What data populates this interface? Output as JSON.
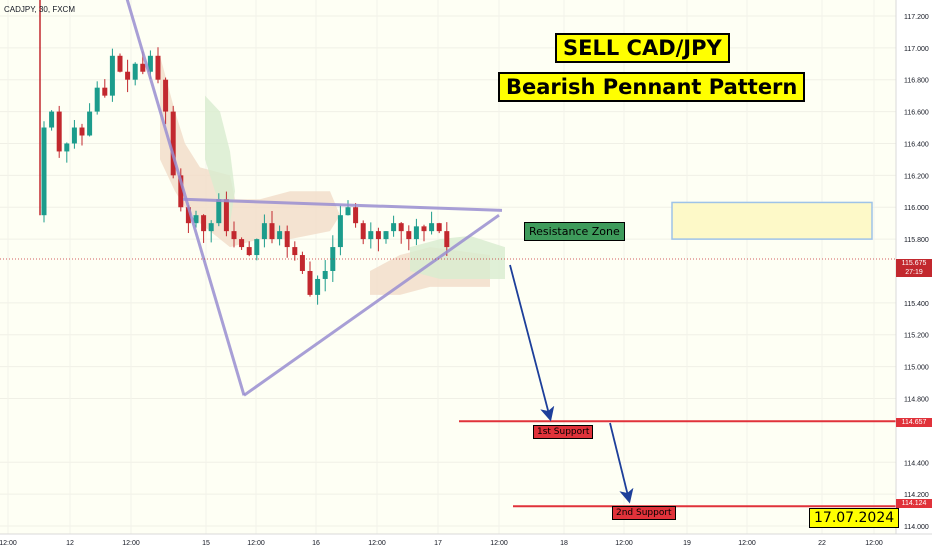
{
  "symbol_label": "CADJPY, 30, FXCM",
  "annotations": {
    "title_line1": "SELL CAD/JPY",
    "title_line2": "Bearish Pennant Pattern",
    "resistance_zone": "Resistance Zone",
    "support1": "1st Support",
    "support2": "2nd Support",
    "date": "17.07.2024"
  },
  "price_badges": {
    "current_price": "115.675",
    "countdown": "27:19",
    "support1_price": "114.657",
    "support2_price": "114.124"
  },
  "colors": {
    "background": "#fefff4",
    "bull_candle": "#1c9c8c",
    "bear_candle": "#c2282e",
    "support_line": "#e0323a",
    "pennant_line": "#9a8fd1",
    "arrow": "#1d3f9a",
    "ichimoku_bull_cloud": "#d8ecd0",
    "ichimoku_bear_cloud": "#f1dcc8"
  },
  "chart_data": {
    "type": "candlestick",
    "symbol": "CADJPY",
    "timeframe": "30",
    "source": "FXCM",
    "y_ticks": [
      "117.200",
      "117.000",
      "116.800",
      "116.600",
      "116.400",
      "116.200",
      "116.000",
      "115.800",
      "115.400",
      "115.200",
      "115.000",
      "114.800",
      "114.400",
      "114.200",
      "114.000"
    ],
    "x_ticks": [
      "12:00",
      "12",
      "12:00",
      "15",
      "12:00",
      "16",
      "12:00",
      "17",
      "12:00",
      "18",
      "12:00",
      "19",
      "12:00",
      "22",
      "12:00"
    ],
    "ylim": [
      113.95,
      117.3
    ],
    "current_price": 115.675,
    "support_levels": [
      114.657,
      114.124
    ],
    "price_path": [
      [
        0,
        115.95
      ],
      [
        1,
        116.5
      ],
      [
        2,
        116.6
      ],
      [
        3,
        116.35
      ],
      [
        4,
        116.4
      ],
      [
        5,
        116.5
      ],
      [
        6,
        116.45
      ],
      [
        7,
        116.6
      ],
      [
        8,
        116.75
      ],
      [
        9,
        116.7
      ],
      [
        10,
        116.95
      ],
      [
        11,
        116.85
      ],
      [
        12,
        116.8
      ],
      [
        13,
        116.9
      ],
      [
        14,
        116.85
      ],
      [
        15,
        116.95
      ],
      [
        16,
        116.8
      ],
      [
        17,
        116.6
      ],
      [
        18,
        116.2
      ],
      [
        19,
        116.0
      ],
      [
        20,
        115.9
      ],
      [
        21,
        115.95
      ],
      [
        22,
        115.85
      ],
      [
        23,
        115.9
      ],
      [
        24,
        116.05
      ],
      [
        25,
        115.85
      ],
      [
        26,
        115.8
      ],
      [
        27,
        115.75
      ],
      [
        28,
        115.7
      ],
      [
        29,
        115.8
      ],
      [
        30,
        115.9
      ],
      [
        31,
        115.8
      ],
      [
        32,
        115.85
      ],
      [
        33,
        115.75
      ],
      [
        34,
        115.7
      ],
      [
        35,
        115.6
      ],
      [
        36,
        115.45
      ],
      [
        37,
        115.55
      ],
      [
        38,
        115.6
      ],
      [
        39,
        115.75
      ],
      [
        40,
        115.95
      ],
      [
        41,
        116.0
      ],
      [
        42,
        115.9
      ],
      [
        43,
        115.8
      ],
      [
        44,
        115.85
      ],
      [
        45,
        115.8
      ],
      [
        46,
        115.85
      ],
      [
        47,
        115.9
      ],
      [
        48,
        115.85
      ],
      [
        49,
        115.8
      ],
      [
        50,
        115.88
      ],
      [
        51,
        115.85
      ],
      [
        52,
        115.9
      ],
      [
        53,
        115.85
      ],
      [
        54,
        115.75
      ]
    ],
    "pennant": {
      "upper_line": [
        [
          22,
          116.05
        ],
        [
          64,
          116.0
        ]
      ],
      "lower_line": [
        [
          7,
          114.8
        ],
        [
          64,
          115.95
        ]
      ],
      "pole": [
        [
          6,
          117.35
        ],
        [
          7,
          114.8
        ]
      ]
    },
    "resistance_zone": {
      "x_start": 53,
      "x_end": 78,
      "y_low": 115.8,
      "y_high": 116.03
    },
    "projection_arrows": [
      {
        "from": [
          64,
          115.6
        ],
        "to": [
          68,
          114.66
        ]
      },
      {
        "from": [
          75,
          114.66
        ],
        "to": [
          77,
          114.13
        ]
      }
    ]
  }
}
